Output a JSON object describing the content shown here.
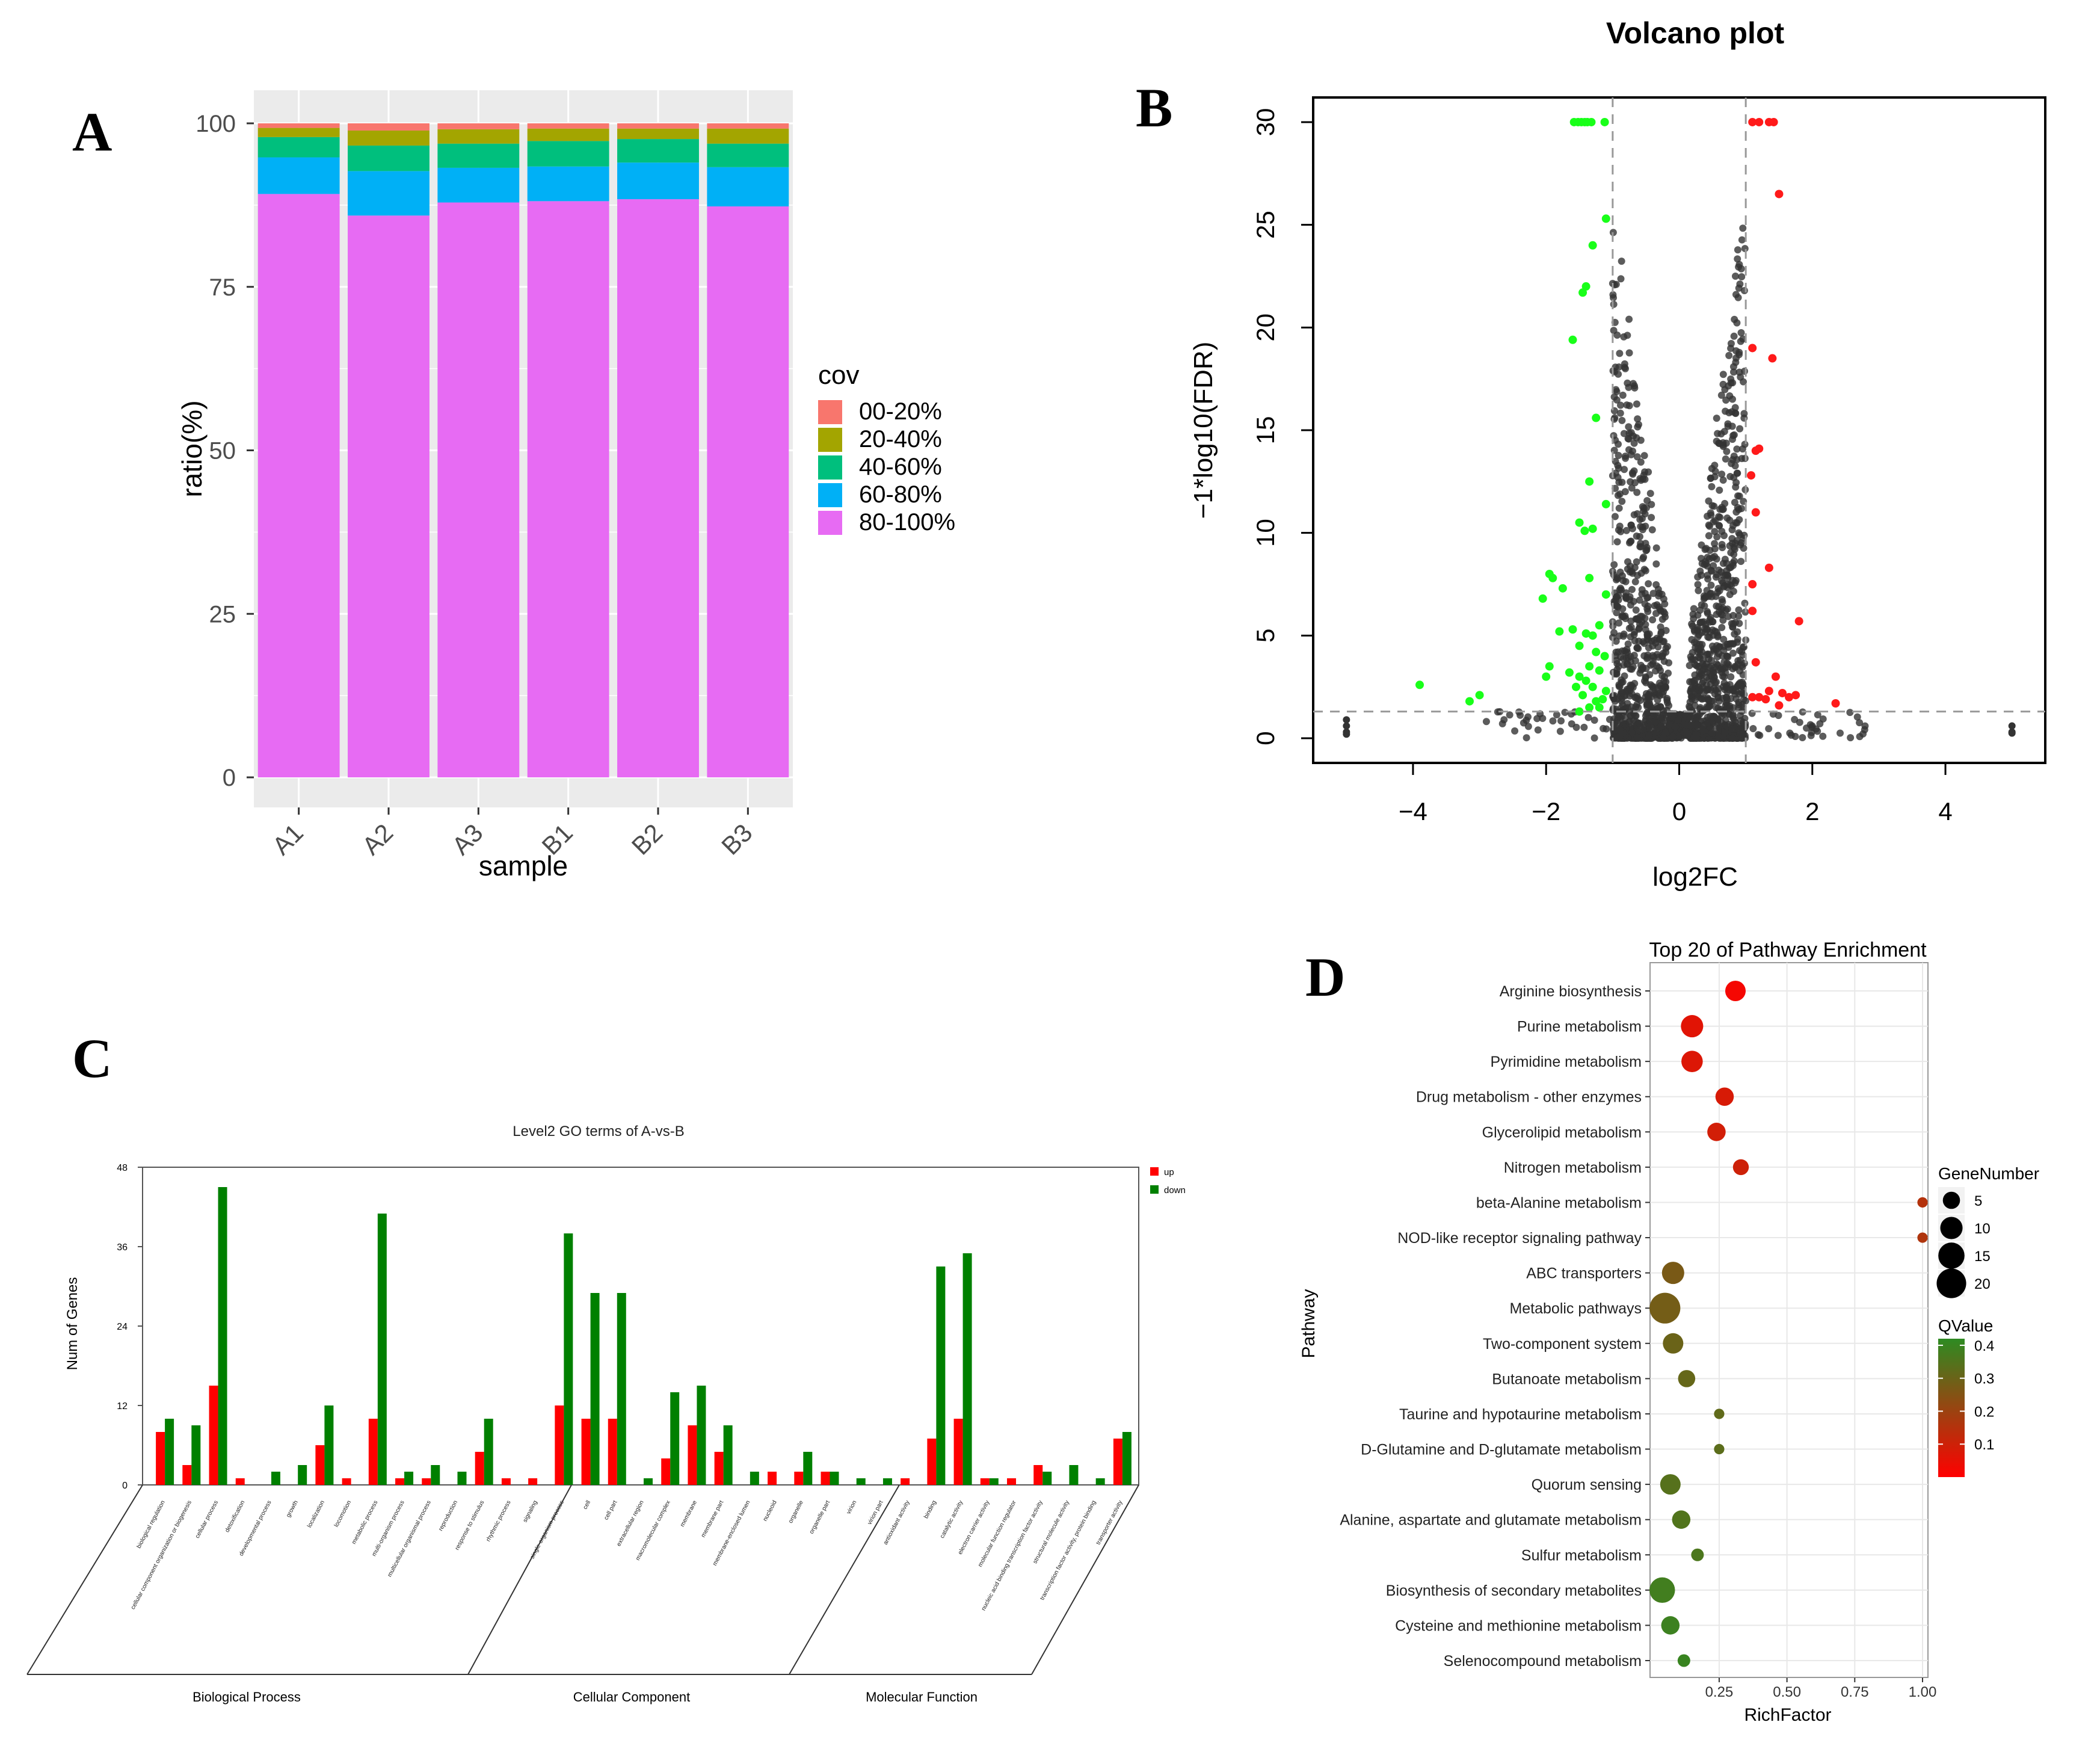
{
  "panel_labels": [
    "A",
    "B",
    "C",
    "D"
  ],
  "colors": {
    "panel_bg": "#ebebeb",
    "grid": "#ffffff",
    "grid_light": "#e8e8e8",
    "cov": [
      "#f8766d",
      "#a3a500",
      "#00bf7d",
      "#00b0f6",
      "#e76bf3"
    ],
    "up": "#ff0000",
    "down": "#008000",
    "ns": "#333333",
    "volcano_up": "#ff1a1a",
    "volcano_down": "#19ff19"
  },
  "chart_data": [
    {
      "id": "A",
      "type": "bar",
      "stacked": true,
      "categories": [
        "A1",
        "A2",
        "A3",
        "B1",
        "B2",
        "B3"
      ],
      "series": [
        {
          "name": "80-100%",
          "values": [
            89.2,
            85.9,
            87.9,
            88.1,
            88.4,
            87.3
          ]
        },
        {
          "name": "60-80%",
          "values": [
            5.6,
            6.8,
            5.3,
            5.3,
            5.6,
            6.0
          ]
        },
        {
          "name": "40-60%",
          "values": [
            3.1,
            3.9,
            3.7,
            3.9,
            3.6,
            3.6
          ]
        },
        {
          "name": "20-40%",
          "values": [
            1.4,
            2.3,
            2.2,
            1.9,
            1.6,
            2.3
          ]
        },
        {
          "name": "00-20%",
          "values": [
            0.7,
            1.1,
            0.9,
            0.8,
            0.8,
            0.8
          ]
        }
      ],
      "legend_order": [
        "00-20%",
        "20-40%",
        "40-60%",
        "60-80%",
        "80-100%"
      ],
      "legend_title": "cov",
      "xlabel": "sample",
      "ylabel": "ratio(%)",
      "ylim": [
        0,
        100
      ],
      "yticks": [
        0,
        25,
        50,
        75,
        100
      ],
      "grid": true,
      "legend_position": "right"
    },
    {
      "id": "B",
      "type": "scatter",
      "title": "Volcano plot",
      "xlabel": "log2FC",
      "ylabel": "-1*log10(FDR)",
      "xlim": [
        -5.5,
        5.5
      ],
      "ylim": [
        -1.2,
        31.2
      ],
      "xticks": [
        -4,
        -2,
        0,
        2,
        4
      ],
      "yticks": [
        0,
        5,
        10,
        15,
        20,
        25,
        30
      ],
      "threshold_lines": {
        "x": [
          -1,
          1
        ],
        "y": 1.3
      },
      "grid": false,
      "up_points": [
        [
          1.1,
          30
        ],
        [
          1.2,
          30
        ],
        [
          1.35,
          30
        ],
        [
          1.42,
          30
        ],
        [
          1.5,
          26.5
        ],
        [
          1.1,
          19
        ],
        [
          1.4,
          18.5
        ],
        [
          1.15,
          14
        ],
        [
          1.2,
          14.1
        ],
        [
          1.08,
          12.8
        ],
        [
          1.15,
          11
        ],
        [
          1.35,
          8.3
        ],
        [
          1.1,
          7.5
        ],
        [
          1.1,
          6.2
        ],
        [
          1.8,
          5.7
        ],
        [
          1.15,
          3.7
        ],
        [
          1.45,
          3
        ],
        [
          1.35,
          2.3
        ],
        [
          1.1,
          2
        ],
        [
          1.2,
          2
        ],
        [
          1.3,
          1.9
        ],
        [
          1.55,
          2.2
        ],
        [
          1.65,
          2
        ],
        [
          1.75,
          2.1
        ],
        [
          2.35,
          1.7
        ],
        [
          1.5,
          1.6
        ]
      ],
      "down_points": [
        [
          -1.58,
          30
        ],
        [
          -1.52,
          30
        ],
        [
          -1.47,
          30
        ],
        [
          -1.42,
          30
        ],
        [
          -1.38,
          30
        ],
        [
          -1.32,
          30
        ],
        [
          -1.12,
          30
        ],
        [
          -1.1,
          25.3
        ],
        [
          -1.3,
          24
        ],
        [
          -1.4,
          22
        ],
        [
          -1.45,
          21.7
        ],
        [
          -1.6,
          19.4
        ],
        [
          -1.25,
          15.6
        ],
        [
          -1.35,
          12.5
        ],
        [
          -1.1,
          11.4
        ],
        [
          -1.3,
          10.2
        ],
        [
          -1.5,
          10.5
        ],
        [
          -1.42,
          10.1
        ],
        [
          -1.95,
          8
        ],
        [
          -1.9,
          7.8
        ],
        [
          -1.75,
          7.3
        ],
        [
          -2.05,
          6.8
        ],
        [
          -1.35,
          7.8
        ],
        [
          -1.1,
          7
        ],
        [
          -1.8,
          5.2
        ],
        [
          -1.6,
          5.3
        ],
        [
          -1.4,
          5.1
        ],
        [
          -1.3,
          5
        ],
        [
          -1.2,
          5.5
        ],
        [
          -1.12,
          4
        ],
        [
          -1.5,
          4.5
        ],
        [
          -1.25,
          4.2
        ],
        [
          -1.35,
          3.5
        ],
        [
          -1.5,
          3
        ],
        [
          -1.2,
          3.3
        ],
        [
          -2.0,
          3
        ],
        [
          -1.95,
          3.5
        ],
        [
          -1.65,
          3.2
        ],
        [
          -1.4,
          2.8
        ],
        [
          -1.3,
          2.5
        ],
        [
          -1.55,
          2.5
        ],
        [
          -1.1,
          2.3
        ],
        [
          -1.45,
          2.1
        ],
        [
          -1.25,
          1.8
        ],
        [
          -1.15,
          1.9
        ],
        [
          -1.35,
          1.5
        ],
        [
          -3.9,
          2.6
        ],
        [
          -3.0,
          2.1
        ],
        [
          -3.15,
          1.8
        ],
        [
          -1.5,
          1.3
        ],
        [
          -1.2,
          1.5
        ]
      ],
      "ns_points_note": "dense grey cloud between the vertical threshold lines plus points at x = -5 and x = 5"
    },
    {
      "id": "C",
      "type": "bar",
      "title": "Level2 GO terms of A-vs-B",
      "ylabel": "Num of Genes",
      "ylim": [
        0,
        48
      ],
      "yticks": [
        0,
        12,
        24,
        36,
        48
      ],
      "categories": [
        "biological regulation",
        "cellular component organization or biogenesis",
        "cellular process",
        "detoxification",
        "developmental process",
        "growth",
        "localization",
        "locomotion",
        "metabolic process",
        "multi-organism process",
        "multicellular organismal process",
        "reproduction",
        "response to stimulus",
        "rhythmic process",
        "signaling",
        "single-organism process",
        "cell",
        "cell part",
        "extracellular region",
        "macromolecular complex",
        "membrane",
        "membrane part",
        "membrane-enclosed lumen",
        "nucleoid",
        "organelle",
        "organelle part",
        "virion",
        "virion part",
        "antioxidant activity",
        "binding",
        "catalytic activity",
        "electron carrier activity",
        "molecular function regulator",
        "nucleic acid binding transcription factor activity",
        "structural molecule activity",
        "transcription factor activity, protein binding",
        "transporter activity"
      ],
      "groups": [
        {
          "name": "Biological Process",
          "from": 0,
          "to": 15
        },
        {
          "name": "Cellular Component",
          "from": 16,
          "to": 27
        },
        {
          "name": "Molecular Function",
          "from": 28,
          "to": 36
        }
      ],
      "series": [
        {
          "name": "up",
          "values": [
            8,
            3,
            15,
            1,
            0,
            0,
            6,
            1,
            10,
            1,
            1,
            0,
            5,
            1,
            1,
            12,
            10,
            10,
            0,
            4,
            9,
            5,
            0,
            2,
            2,
            2,
            0,
            0,
            1,
            7,
            10,
            1,
            1,
            3,
            0,
            0,
            7
          ]
        },
        {
          "name": "down",
          "values": [
            10,
            9,
            45,
            0,
            2,
            3,
            12,
            0,
            41,
            2,
            3,
            2,
            10,
            0,
            0,
            38,
            29,
            29,
            1,
            14,
            15,
            9,
            2,
            0,
            5,
            2,
            1,
            1,
            0,
            33,
            35,
            1,
            0,
            2,
            3,
            1,
            8
          ]
        }
      ],
      "legend_position": "top-right"
    },
    {
      "id": "D",
      "type": "scatter",
      "title": "Top 20 of Pathway Enrichment",
      "xlabel": "RichFactor",
      "ylabel": "Pathway",
      "xlim": [
        -0.005,
        1.02
      ],
      "xticks": [
        0.25,
        0.5,
        0.75,
        1.0
      ],
      "xtick_labels": [
        "0.25",
        "0.50",
        "0.75",
        "1.00"
      ],
      "size_legend_title": "GeneNumber",
      "size_legend": [
        5,
        10,
        15,
        20
      ],
      "color_legend_title": "QValue",
      "color_legend_ticks": [
        0.1,
        0.2,
        0.3,
        0.4
      ],
      "color_range": [
        0.0,
        0.42
      ],
      "pathways": [
        {
          "name": "Arginine biosynthesis",
          "rich": 0.31,
          "genes": 8,
          "q": 0.02
        },
        {
          "name": "Purine metabolism",
          "rich": 0.15,
          "genes": 10,
          "q": 0.06
        },
        {
          "name": "Pyrimidine metabolism",
          "rich": 0.15,
          "genes": 9,
          "q": 0.07
        },
        {
          "name": "Drug metabolism - other enzymes",
          "rich": 0.27,
          "genes": 6,
          "q": 0.08
        },
        {
          "name": "Glycerolipid metabolism",
          "rich": 0.24,
          "genes": 6,
          "q": 0.09
        },
        {
          "name": "Nitrogen metabolism",
          "rich": 0.33,
          "genes": 4,
          "q": 0.1
        },
        {
          "name": "beta-Alanine metabolism",
          "rich": 1.0,
          "genes": 1,
          "q": 0.15
        },
        {
          "name": "NOD-like receptor signaling pathway",
          "rich": 1.0,
          "genes": 1,
          "q": 0.16
        },
        {
          "name": "ABC transporters",
          "rich": 0.08,
          "genes": 10,
          "q": 0.27
        },
        {
          "name": "Metabolic pathways",
          "rich": 0.05,
          "genes": 22,
          "q": 0.28
        },
        {
          "name": "Two-component system",
          "rich": 0.08,
          "genes": 8,
          "q": 0.3
        },
        {
          "name": "Butanoate metabolism",
          "rich": 0.13,
          "genes": 5,
          "q": 0.31
        },
        {
          "name": "Taurine and hypotaurine metabolism",
          "rich": 0.25,
          "genes": 1,
          "q": 0.32
        },
        {
          "name": "D-Glutamine and D-glutamate metabolism",
          "rich": 0.25,
          "genes": 1,
          "q": 0.33
        },
        {
          "name": "Quorum sensing",
          "rich": 0.07,
          "genes": 8,
          "q": 0.34
        },
        {
          "name": "Alanine, aspartate and glutamate metabolism",
          "rich": 0.11,
          "genes": 6,
          "q": 0.35
        },
        {
          "name": "Sulfur metabolism",
          "rich": 0.17,
          "genes": 2,
          "q": 0.36
        },
        {
          "name": "Biosynthesis of secondary metabolites",
          "rich": 0.04,
          "genes": 14,
          "q": 0.38
        },
        {
          "name": "Cysteine and methionine metabolism",
          "rich": 0.07,
          "genes": 6,
          "q": 0.39
        },
        {
          "name": "Selenocompound metabolism",
          "rich": 0.12,
          "genes": 2,
          "q": 0.4
        }
      ],
      "grid": true
    }
  ]
}
